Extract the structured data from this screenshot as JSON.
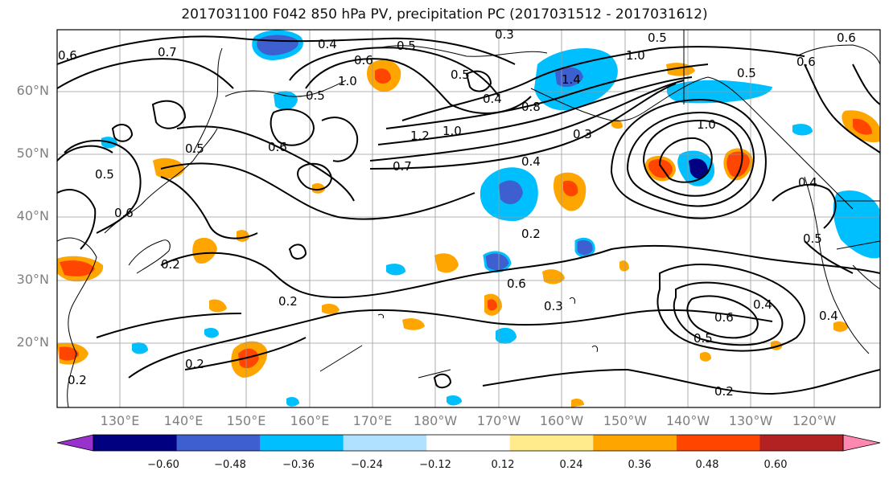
{
  "title": "2017031100 F042 850 hPa PV, precipitation PC (2017031512 - 2017031612)",
  "lat_labels": [
    "60°N",
    "50°N",
    "40°N",
    "30°N",
    "20°N"
  ],
  "lon_labels": [
    "130°E",
    "140°E",
    "150°E",
    "160°E",
    "170°E",
    "180°W",
    "170°W",
    "160°W",
    "150°W",
    "140°W",
    "130°W",
    "120°W"
  ],
  "colorbar": {
    "colors": [
      "#9932cc",
      "#000080",
      "#3d5fcf",
      "#00bfff",
      "#b0e2ff",
      "#ffffff",
      "#ffeb8c",
      "#ffa500",
      "#ff4500",
      "#b22222",
      "#ff88b0"
    ],
    "ticks": [
      "−0.60",
      "−0.48",
      "−0.36",
      "−0.24",
      "−0.12",
      "0.12",
      "0.24",
      "0.36",
      "0.48",
      "0.60"
    ]
  },
  "contour_labels": [
    "0.6",
    "0.7",
    "0.4",
    "0.5",
    "0.3",
    "0.5",
    "0.6",
    "1.0",
    "0.4",
    "0.5",
    "1.0",
    "1.4",
    "0.8",
    "0.6",
    "0.5",
    "0.6",
    "0.5",
    "0.6",
    "0.5",
    "0.7",
    "1.2",
    "1.0",
    "0.4",
    "0.3",
    "1.0",
    "0.5",
    "0.6",
    "0.2",
    "0.6",
    "0.2",
    "0.2",
    "0.3",
    "0.2",
    "0.6",
    "0.4",
    "0.5",
    "0.4",
    "0.2",
    "0.2",
    "0.4",
    "0.5"
  ]
}
